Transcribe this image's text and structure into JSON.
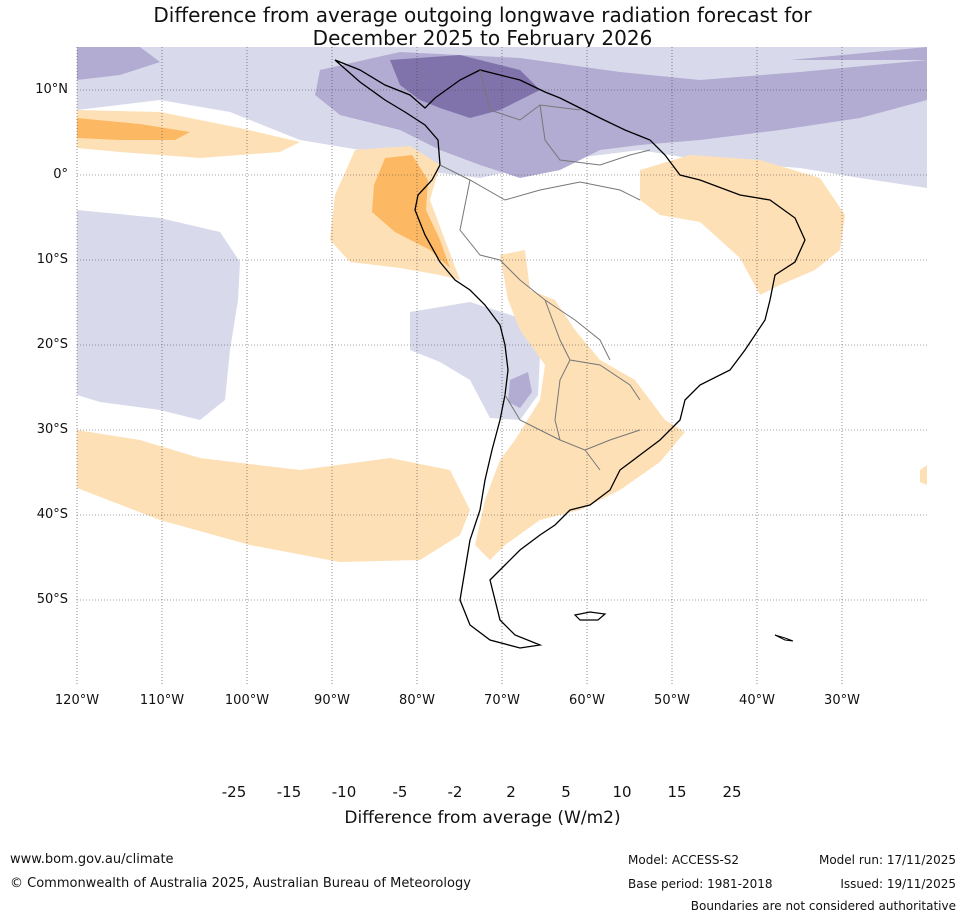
{
  "title": {
    "line1": "Difference from average outgoing longwave radiation forecast for",
    "line2": "December 2025 to February 2026"
  },
  "map": {
    "lat_labels": [
      "10°N",
      "0°",
      "10°S",
      "20°S",
      "30°S",
      "40°S",
      "50°S"
    ],
    "lon_labels": [
      "120°W",
      "110°W",
      "100°W",
      "90°W",
      "80°W",
      "70°W",
      "60°W",
      "50°W",
      "40°W",
      "30°W"
    ]
  },
  "colorbar": {
    "ticks": [
      "-25",
      "-15",
      "-10",
      "-5",
      "-2",
      "2",
      "5",
      "10",
      "15",
      "25"
    ],
    "colors": [
      "#2d004b",
      "#5a2a8a",
      "#8073ac",
      "#b2abd2",
      "#d8daeb",
      "#ffffff",
      "#fee0b6",
      "#fdb863",
      "#e08214",
      "#b35806",
      "#7f3b08"
    ],
    "title": "Difference from average (W/m2)"
  },
  "footer": {
    "website": "www.bom.gov.au/climate",
    "copyright": "© Commonwealth of Australia 2025, Australian Bureau of Meteorology",
    "model": "Model: ACCESS-S2",
    "model_run": "Model run: 17/11/2025",
    "base_period": "Base period: 1981-2018",
    "issued": "Issued: 19/11/2025",
    "disclaimer": "Boundaries are not considered authoritative"
  }
}
